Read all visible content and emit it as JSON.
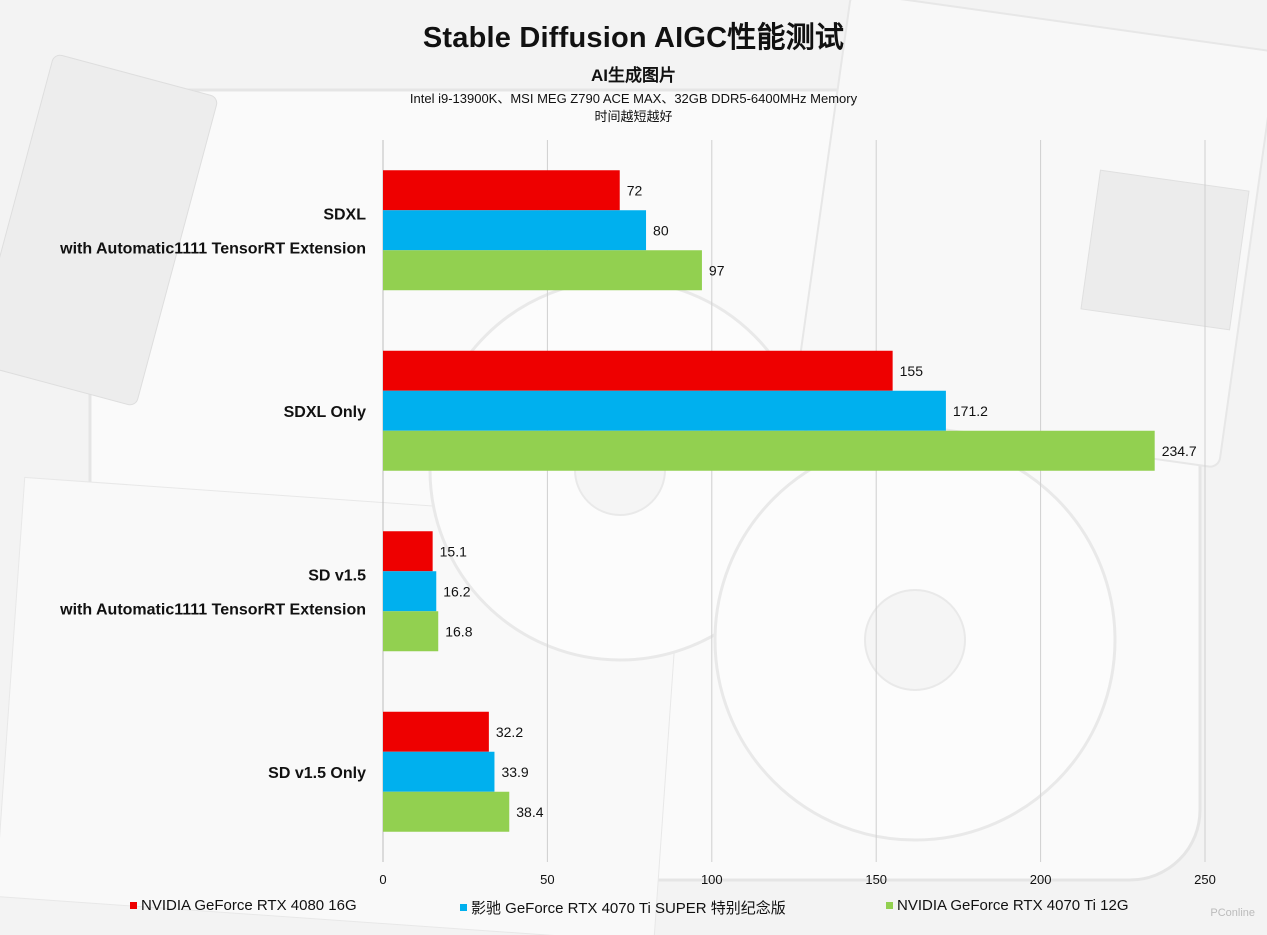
{
  "title": "Stable Diffusion AIGC性能测试",
  "subtitle": "AI生成图片",
  "config_line": "Intel i9-13900K、MSI MEG Z790 ACE MAX、32GB DDR5-6400MHz Memory",
  "note_line": "时间越短越好",
  "watermark": "PConline",
  "colors": {
    "red": "#ee0000",
    "blue": "#00b0ee",
    "green": "#92d050"
  },
  "chart_data": {
    "type": "bar",
    "orientation": "horizontal",
    "categories": [
      [
        "SDXL",
        "with Automatic1111 TensorRT Extension"
      ],
      [
        "SDXL Only"
      ],
      [
        "SD v1.5",
        "with Automatic1111 TensorRT Extension"
      ],
      [
        "SD v1.5 Only"
      ]
    ],
    "series": [
      {
        "name": "NVIDIA GeForce RTX 4080 16G",
        "color": "#ee0000",
        "values": [
          72,
          155,
          15.1,
          32.2
        ]
      },
      {
        "name": "影驰 GeForce RTX 4070 Ti SUPER 特别纪念版",
        "color": "#00b0ee",
        "values": [
          80,
          171.2,
          16.2,
          33.9
        ]
      },
      {
        "name": "NVIDIA GeForce RTX 4070 Ti 12G",
        "color": "#92d050",
        "values": [
          97,
          234.7,
          16.8,
          38.4
        ]
      }
    ],
    "xlim": [
      0,
      250
    ],
    "xticks": [
      0,
      50,
      100,
      150,
      200,
      250
    ],
    "grid": true,
    "legend_position": "bottom"
  }
}
